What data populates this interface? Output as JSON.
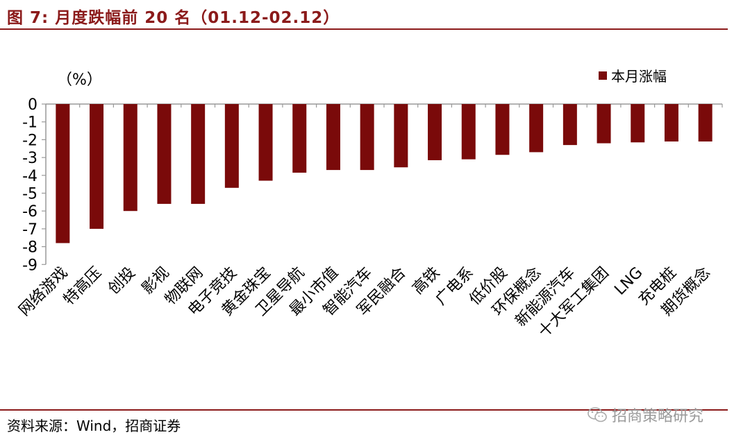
{
  "title": "图 7:  月度跌幅前 20 名（01.12-02.12）",
  "source": "资料来源：Wind，招商证券",
  "watermark": "招商策略研究",
  "watermark_icon": "wechat-icon",
  "colors": {
    "bar": "#7A0A0A",
    "title": "#8B1A1A",
    "axis": "#999999"
  },
  "chart_data": {
    "type": "bar",
    "unit_label": "（%）",
    "legend": [
      "本月涨幅"
    ],
    "legend_position": "top-right",
    "grid": false,
    "ylim": [
      -9,
      0
    ],
    "yticks": [
      0,
      -1,
      -2,
      -3,
      -4,
      -5,
      -6,
      -7,
      -8,
      -9
    ],
    "categories": [
      "网络游戏",
      "特高压",
      "创投",
      "影视",
      "物联网",
      "电子竞技",
      "黄金珠宝",
      "卫星导航",
      "最小市值",
      "智能汽车",
      "军民融合",
      "高铁",
      "广电系",
      "低价股",
      "环保概念",
      "新能源汽车",
      "十大军工集团",
      "LNG",
      "充电桩",
      "期货概念"
    ],
    "series": [
      {
        "name": "本月涨幅",
        "values": [
          -7.8,
          -7.0,
          -6.0,
          -5.6,
          -5.6,
          -4.7,
          -4.3,
          -3.85,
          -3.7,
          -3.7,
          -3.55,
          -3.15,
          -3.1,
          -2.85,
          -2.7,
          -2.3,
          -2.2,
          -2.15,
          -2.1,
          -2.1
        ]
      }
    ]
  }
}
